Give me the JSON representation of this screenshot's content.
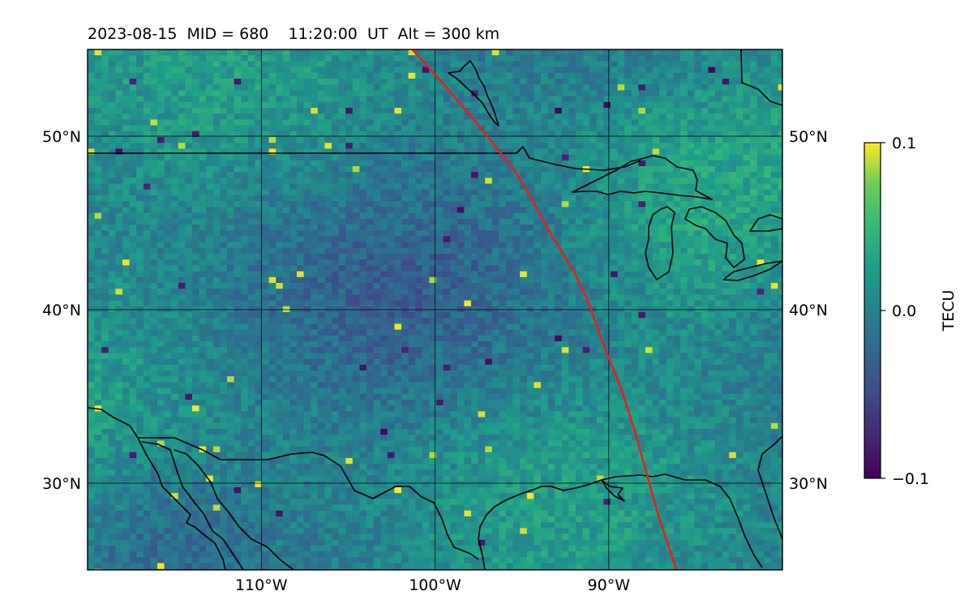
{
  "title": "2023-08-15  MID = 680    11:20:00  UT  Alt = 300 km",
  "map": {
    "lon_range": [
      -120,
      -80
    ],
    "lat_range": [
      25,
      55
    ],
    "grid_lons": [
      -110,
      -100,
      -90
    ],
    "grid_lats": [
      30,
      40,
      50
    ],
    "lon_labels": [
      "110°W",
      "100°W",
      "90°W"
    ],
    "lat_labels": [
      "30°N",
      "40°N",
      "50°N"
    ],
    "overlay_color": "#e8201a",
    "coast_color": "#000000",
    "grid_color": "#000000"
  },
  "colorbar": {
    "label": "TECU",
    "ticks": [
      "0.1",
      "0.0",
      "−0.1"
    ],
    "vmin": -0.1,
    "vmax": 0.1,
    "colormap": "viridis"
  },
  "chart_data": {
    "type": "heatmap",
    "title": "2023-08-15  MID = 680    11:20:00  UT  Alt = 300 km",
    "variable": "TECU",
    "colorbar_range": [
      -0.1,
      0.1
    ],
    "xlim": [
      -120,
      -80
    ],
    "ylim": [
      25,
      55
    ],
    "x_ticks": [
      "110°W",
      "100°W",
      "90°W"
    ],
    "y_ticks": [
      "30°N",
      "40°N",
      "50°N"
    ],
    "red_track": [
      [
        -101.3,
        55
      ],
      [
        -99.5,
        53
      ],
      [
        -97.8,
        51
      ],
      [
        -96.6,
        49.5
      ],
      [
        -95.4,
        48
      ],
      [
        -94.5,
        46.5
      ],
      [
        -93.4,
        44.5
      ],
      [
        -91.9,
        42
      ],
      [
        -91.2,
        40.5
      ],
      [
        -90.3,
        38
      ],
      [
        -89.9,
        37
      ],
      [
        -89.3,
        35.5
      ],
      [
        -88.5,
        33
      ],
      [
        -87.8,
        30.5
      ],
      [
        -87.1,
        28
      ],
      [
        -86.1,
        25
      ]
    ],
    "grid": true
  }
}
